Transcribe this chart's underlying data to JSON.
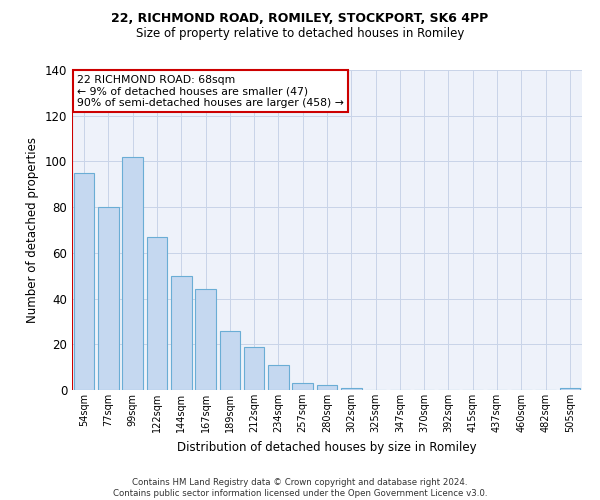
{
  "title1": "22, RICHMOND ROAD, ROMILEY, STOCKPORT, SK6 4PP",
  "title2": "Size of property relative to detached houses in Romiley",
  "xlabel": "Distribution of detached houses by size in Romiley",
  "ylabel": "Number of detached properties",
  "categories": [
    "54sqm",
    "77sqm",
    "99sqm",
    "122sqm",
    "144sqm",
    "167sqm",
    "189sqm",
    "212sqm",
    "234sqm",
    "257sqm",
    "280sqm",
    "302sqm",
    "325sqm",
    "347sqm",
    "370sqm",
    "392sqm",
    "415sqm",
    "437sqm",
    "460sqm",
    "482sqm",
    "505sqm"
  ],
  "values": [
    95,
    80,
    102,
    67,
    50,
    44,
    26,
    19,
    11,
    3,
    2,
    1,
    0,
    0,
    0,
    0,
    0,
    0,
    0,
    0,
    1
  ],
  "bar_color": "#c5d8f0",
  "bar_edge_color": "#6aadd5",
  "highlight_line_color": "#cc0000",
  "annotation_text": "22 RICHMOND ROAD: 68sqm\n← 9% of detached houses are smaller (47)\n90% of semi-detached houses are larger (458) →",
  "annotation_box_color": "#ffffff",
  "annotation_box_edge_color": "#cc0000",
  "ylim": [
    0,
    140
  ],
  "yticks": [
    0,
    20,
    40,
    60,
    80,
    100,
    120,
    140
  ],
  "footer": "Contains HM Land Registry data © Crown copyright and database right 2024.\nContains public sector information licensed under the Open Government Licence v3.0.",
  "bg_color": "#ffffff",
  "grid_color": "#c8d4e8"
}
